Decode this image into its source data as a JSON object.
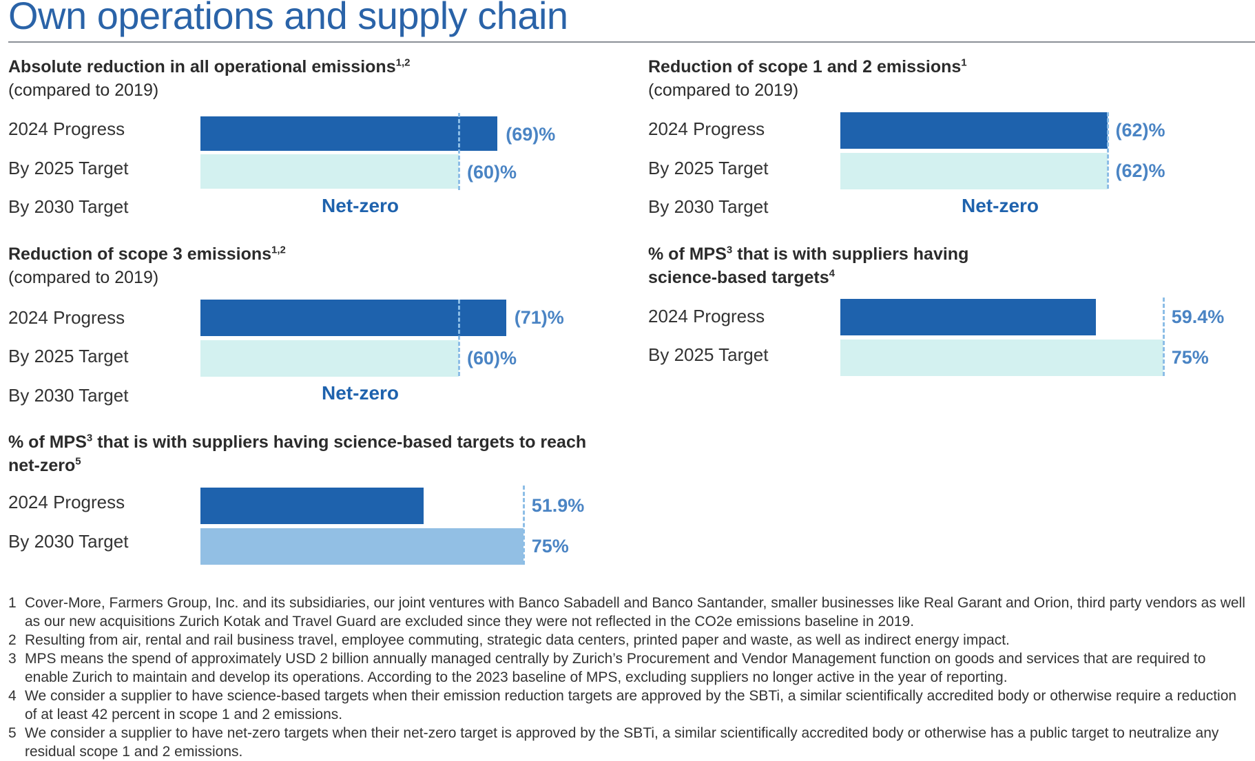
{
  "page_title": "Own operations and supply chain",
  "chart_data": [
    {
      "type": "bar",
      "orientation": "horizontal",
      "title": "Absolute reduction in all operational emissions",
      "title_sup": "1,2",
      "subtitle": "(compared to 2019)",
      "rows": [
        {
          "label": "2024 Progress",
          "value": 69,
          "display": "(69)%",
          "kind": "progress"
        },
        {
          "label": "By 2025 Target",
          "value": 60,
          "display": "(60)%",
          "kind": "target"
        },
        {
          "label": "By 2030 Target",
          "value": null,
          "display": "Net-zero",
          "kind": "text"
        }
      ],
      "target_marker": 60,
      "xlim": [
        0,
        100
      ]
    },
    {
      "type": "bar",
      "orientation": "horizontal",
      "title": "Reduction of scope 1 and 2 emissions",
      "title_sup": "1",
      "subtitle": "(compared to 2019)",
      "rows": [
        {
          "label": "2024 Progress",
          "value": 62,
          "display": "(62)%",
          "kind": "progress"
        },
        {
          "label": "By 2025 Target",
          "value": 62,
          "display": "(62)%",
          "kind": "target"
        },
        {
          "label": "By 2030 Target",
          "value": null,
          "display": "Net-zero",
          "kind": "text"
        }
      ],
      "target_marker": 62,
      "xlim": [
        0,
        100
      ]
    },
    {
      "type": "bar",
      "orientation": "horizontal",
      "title": "Reduction of scope 3 emissions",
      "title_sup": "1,2",
      "subtitle": "(compared to 2019)",
      "rows": [
        {
          "label": "2024 Progress",
          "value": 71,
          "display": "(71)%",
          "kind": "progress"
        },
        {
          "label": "By 2025 Target",
          "value": 60,
          "display": "(60)%",
          "kind": "target"
        },
        {
          "label": "By 2030 Target",
          "value": null,
          "display": "Net-zero",
          "kind": "text"
        }
      ],
      "target_marker": 60,
      "xlim": [
        0,
        100
      ]
    },
    {
      "type": "bar",
      "orientation": "horizontal",
      "title_parts": [
        "% of MPS",
        "3",
        " that is with suppliers having",
        "science-based targets",
        "4"
      ],
      "rows": [
        {
          "label": "2024 Progress",
          "value": 59.4,
          "display": "59.4%",
          "kind": "progress"
        },
        {
          "label": "By 2025 Target",
          "value": 75,
          "display": "75%",
          "kind": "target"
        }
      ],
      "target_marker": 75,
      "xlim": [
        0,
        100
      ]
    },
    {
      "type": "bar",
      "orientation": "horizontal",
      "title_parts": [
        "% of MPS",
        "3",
        " that is with suppliers having science-based targets to reach",
        "net-zero",
        "5"
      ],
      "rows": [
        {
          "label": "2024 Progress",
          "value": 51.9,
          "display": "51.9%",
          "kind": "progress"
        },
        {
          "label": "By 2030 Target",
          "value": 75,
          "display": "75%",
          "kind": "target-dark"
        }
      ],
      "target_marker": 75,
      "xlim": [
        0,
        100
      ]
    }
  ],
  "footnotes": [
    {
      "num": "1",
      "text": "Cover-More, Farmers Group, Inc. and its subsidiaries, our joint ventures with Banco Sabadell and Banco Santander, smaller businesses like Real Garant and Orion, third party vendors as well as our new acquisitions Zurich Kotak and Travel Guard are excluded since they were not reflected in the CO2e emissions baseline in 2019."
    },
    {
      "num": "2",
      "text": "Resulting from air, rental and rail business travel, employee commuting, strategic data centers, printed paper and waste, as well as indirect energy impact."
    },
    {
      "num": "3",
      "text": "MPS means the spend of approximately USD 2 billion annually managed centrally by Zurich’s Procurement and Vendor Management function on goods and services that are required to enable Zurich to maintain and develop its operations. According to the 2023 baseline of MPS, excluding suppliers no longer active in the year of reporting."
    },
    {
      "num": "4",
      "text": "We consider a supplier to have science-based targets when their emission reduction targets are approved by the SBTi, a similar scientifically accredited body or otherwise require a reduction of at least 42 percent in scope 1 and 2 emissions."
    },
    {
      "num": "5",
      "text": "We consider a supplier to have net-zero targets when their net-zero target is approved by the SBTi, a similar scientifically accredited body or otherwise has a public target to neutralize any residual scope 1 and 2 emissions."
    }
  ]
}
